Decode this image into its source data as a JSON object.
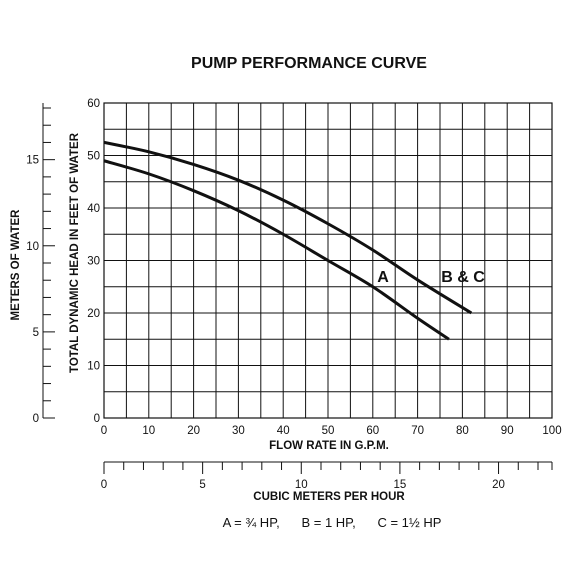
{
  "chart_data": {
    "type": "line",
    "title": "PUMP PERFORMANCE CURVE",
    "xlabel": "FLOW RATE IN G.P.M.",
    "ylabel": "TOTAL DYNAMIC HEAD IN FEET OF WATER",
    "xlim": [
      0,
      100
    ],
    "ylim": [
      0,
      60
    ],
    "grid": true,
    "x_ticks": [
      "0",
      "10",
      "20",
      "30",
      "40",
      "50",
      "60",
      "70",
      "80",
      "90",
      "100"
    ],
    "y_ticks": [
      "0",
      "10",
      "20",
      "30",
      "40",
      "50",
      "60"
    ],
    "secondary_y": {
      "label": "METERS OF WATER",
      "range": [
        0,
        18.29
      ],
      "ticks": [
        "0",
        "5",
        "10",
        "15"
      ],
      "tick_values": [
        0,
        5,
        10,
        15
      ]
    },
    "secondary_x": {
      "label": "CUBIC METERS PER HOUR",
      "range": [
        0,
        22.71
      ],
      "ticks": [
        "0",
        "5",
        "10",
        "15",
        "20"
      ],
      "tick_values": [
        0,
        5,
        10,
        15,
        20
      ]
    },
    "series": [
      {
        "name": "A",
        "x": [
          0,
          10,
          20,
          30,
          40,
          50,
          60,
          70,
          77
        ],
        "y": [
          49,
          46.5,
          43.3,
          39.5,
          35,
          30,
          25,
          19,
          15
        ]
      },
      {
        "name": "B & C",
        "x": [
          0,
          10,
          20,
          30,
          40,
          50,
          60,
          70,
          82
        ],
        "y": [
          52.5,
          50.7,
          48.3,
          45.3,
          41.5,
          37,
          32,
          26.3,
          20
        ]
      }
    ],
    "legend_text": "A = ¾ HP,      B = 1 HP,      C = 1½ HP"
  }
}
